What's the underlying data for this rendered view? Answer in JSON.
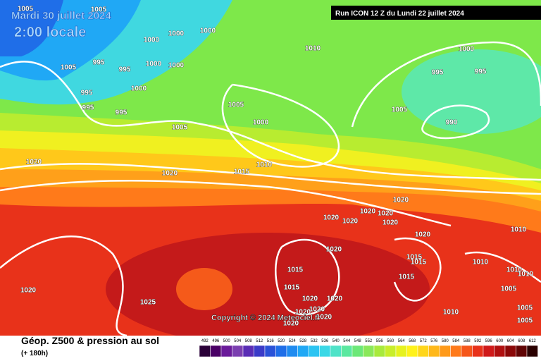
{
  "header": {
    "date": "Mardi 30 juillet 2024",
    "time": "2:00 locale",
    "run": "Run ICON 12 Z du Lundi 22 juillet 2024"
  },
  "copyright": "Copyright © 2024 Meteociel.fr",
  "isobars": {
    "labels": [
      1005,
      1005,
      1000,
      1000,
      1000,
      995,
      995,
      1005,
      1000,
      1000,
      1000,
      995,
      995,
      995,
      1010,
      1000,
      995,
      995,
      1005,
      1005,
      990,
      1000,
      1005,
      1020,
      1020,
      1015,
      1010,
      1020,
      1020,
      1020,
      1020,
      1020,
      1020,
      1020,
      1010,
      1020,
      1015,
      1015,
      1010,
      1015,
      1010,
      1010,
      1015,
      1005,
      1015,
      1020,
      1025,
      1020,
      1020,
      1020,
      1020,
      1020,
      1010,
      1005,
      1005,
      1020
    ]
  },
  "footer": {
    "title": "Géop. Z500 & pression au sol",
    "subtitle": "(+ 180h)"
  },
  "legend": {
    "labels": [
      492,
      496,
      500,
      504,
      508,
      512,
      516,
      520,
      524,
      528,
      532,
      536,
      540,
      544,
      548,
      552,
      556,
      560,
      564,
      568,
      572,
      576,
      580,
      584,
      588,
      592,
      596,
      600,
      604,
      608,
      612
    ],
    "colors": [
      "#2a0038",
      "#4a0066",
      "#6a1b9a",
      "#7b3fb0",
      "#5a2db5",
      "#3b3bc8",
      "#2a52d8",
      "#1f6ee8",
      "#1f8bf0",
      "#20a8f5",
      "#2bc4f2",
      "#3ad8e6",
      "#4fe3c8",
      "#5be8a0",
      "#6ce878",
      "#8ae85a",
      "#a8ea3c",
      "#c8ee2a",
      "#e6f21e",
      "#fff21a",
      "#ffd61a",
      "#ffb81a",
      "#ff9a1a",
      "#ff7a1a",
      "#f5561a",
      "#e8321a",
      "#d01a1a",
      "#b01010",
      "#8a0808",
      "#600404",
      "#2a0000"
    ]
  }
}
